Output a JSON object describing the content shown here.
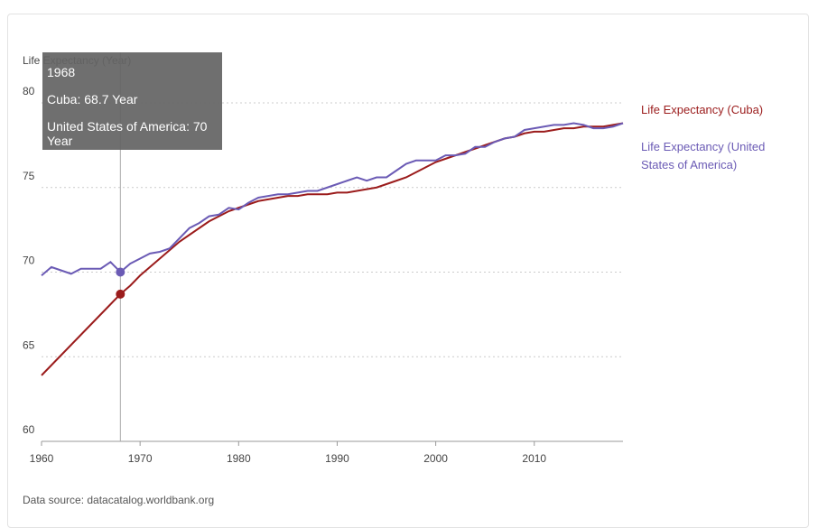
{
  "chart_data": {
    "type": "line",
    "y_label": "Life Expectancy (Year)",
    "x": [
      1960,
      1961,
      1962,
      1963,
      1964,
      1965,
      1966,
      1967,
      1968,
      1969,
      1970,
      1971,
      1972,
      1973,
      1974,
      1975,
      1976,
      1977,
      1978,
      1979,
      1980,
      1981,
      1982,
      1983,
      1984,
      1985,
      1986,
      1987,
      1988,
      1989,
      1990,
      1991,
      1992,
      1993,
      1994,
      1995,
      1996,
      1997,
      1998,
      1999,
      2000,
      2001,
      2002,
      2003,
      2004,
      2005,
      2006,
      2007,
      2008,
      2009,
      2010,
      2011,
      2012,
      2013,
      2014,
      2015,
      2016,
      2017,
      2018,
      2019
    ],
    "series": [
      {
        "name": "Life Expectancy (Cuba)",
        "color": "#9b1c1c",
        "values": [
          63.9,
          64.5,
          65.1,
          65.7,
          66.3,
          66.9,
          67.5,
          68.1,
          68.7,
          69.2,
          69.8,
          70.3,
          70.8,
          71.3,
          71.8,
          72.2,
          72.6,
          73.0,
          73.3,
          73.6,
          73.8,
          74.0,
          74.2,
          74.3,
          74.4,
          74.5,
          74.5,
          74.6,
          74.6,
          74.6,
          74.7,
          74.7,
          74.8,
          74.9,
          75.0,
          75.2,
          75.4,
          75.6,
          75.9,
          76.2,
          76.5,
          76.7,
          76.9,
          77.1,
          77.3,
          77.5,
          77.7,
          77.9,
          78.0,
          78.2,
          78.3,
          78.3,
          78.4,
          78.5,
          78.5,
          78.6,
          78.6,
          78.6,
          78.7,
          78.8
        ]
      },
      {
        "name": "Life Expectancy (United States of America)",
        "color": "#6b5bb5",
        "values": [
          69.8,
          70.3,
          70.1,
          69.9,
          70.2,
          70.2,
          70.2,
          70.6,
          70.0,
          70.5,
          70.8,
          71.1,
          71.2,
          71.4,
          72.0,
          72.6,
          72.9,
          73.3,
          73.4,
          73.8,
          73.7,
          74.1,
          74.4,
          74.5,
          74.6,
          74.6,
          74.7,
          74.8,
          74.8,
          75.0,
          75.2,
          75.4,
          75.6,
          75.4,
          75.6,
          75.6,
          76.0,
          76.4,
          76.6,
          76.6,
          76.6,
          76.9,
          76.9,
          77.0,
          77.4,
          77.4,
          77.7,
          77.9,
          78.0,
          78.4,
          78.5,
          78.6,
          78.7,
          78.7,
          78.8,
          78.7,
          78.5,
          78.5,
          78.6,
          78.8
        ]
      }
    ],
    "xlim": [
      1960,
      2019
    ],
    "ylim": [
      60,
      80
    ],
    "xticks": [
      1960,
      1970,
      1980,
      1990,
      2000,
      2010
    ],
    "yticks": [
      60,
      65,
      70,
      75,
      80
    ],
    "grid": true,
    "tooltip": {
      "title": 1968,
      "lines": [
        "Cuba: 68.7 Year",
        "United States of America: 70 Year"
      ]
    },
    "source": "Data source: datacatalog.worldbank.org"
  }
}
